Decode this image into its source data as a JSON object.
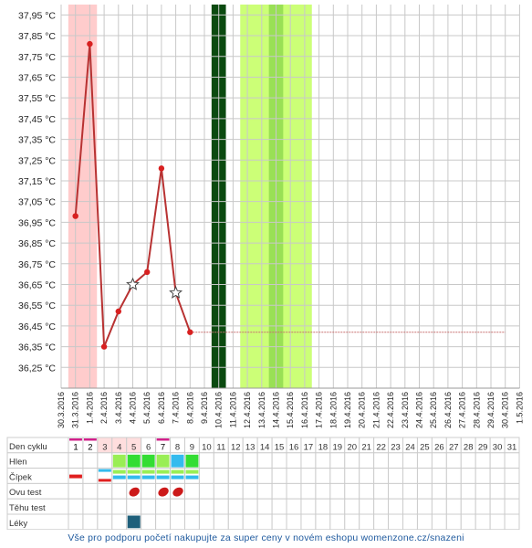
{
  "chart_data": {
    "type": "line",
    "ylim": [
      36.15,
      38.0
    ],
    "y_ticks": [
      36.25,
      36.35,
      36.45,
      36.55,
      36.65,
      36.75,
      36.85,
      36.95,
      37.05,
      37.15,
      37.25,
      37.35,
      37.45,
      37.55,
      37.65,
      37.75,
      37.85,
      37.95
    ],
    "y_tick_labels": [
      "36,25 °C",
      "36,35 °C",
      "36,45 °C",
      "36,55 °C",
      "36,65 °C",
      "36,75 °C",
      "36,85 °C",
      "36,95 °C",
      "37,05 °C",
      "37,15 °C",
      "37,25 °C",
      "37,35 °C",
      "37,45 °C",
      "37,55 °C",
      "37,65 °C",
      "37,75 °C",
      "37,85 °C",
      "37,95 °C"
    ],
    "x_dates": [
      "30.3.2016",
      "31.3.2016",
      "1.4.2016",
      "2.4.2016",
      "3.4.2016",
      "4.4.2016",
      "5.4.2016",
      "6.4.2016",
      "7.4.2016",
      "8.4.2016",
      "9.4.2016",
      "10.4.2016",
      "11.4.2016",
      "12.4.2016",
      "13.4.2016",
      "14.4.2016",
      "15.4.2016",
      "16.4.2016",
      "17.4.2016",
      "18.4.2016",
      "19.4.2016",
      "20.4.2016",
      "21.4.2016",
      "22.4.2016",
      "23.4.2016",
      "24.4.2016",
      "25.4.2016",
      "26.4.2016",
      "27.4.2016",
      "28.4.2016",
      "29.4.2016",
      "30.4.2016",
      "1.5.2016"
    ],
    "temperatures": [
      {
        "date": "31.3.2016",
        "value": 36.98
      },
      {
        "date": "1.4.2016",
        "value": 37.81
      },
      {
        "date": "2.4.2016",
        "value": 36.35
      },
      {
        "date": "3.4.2016",
        "value": 36.52
      },
      {
        "date": "4.4.2016",
        "value": 36.65,
        "marker": "star"
      },
      {
        "date": "5.4.2016",
        "value": 36.71
      },
      {
        "date": "6.4.2016",
        "value": 37.21
      },
      {
        "date": "7.4.2016",
        "value": 36.61,
        "marker": "star"
      },
      {
        "date": "8.4.2016",
        "value": 36.42
      }
    ],
    "baseline": {
      "value": 36.42,
      "from": "8.4.2016",
      "to": "30.4.2016"
    },
    "bands": [
      {
        "from": "31.3.2016",
        "to": "1.4.2016",
        "color": "#ffcccc"
      },
      {
        "from": "10.4.2016",
        "to": "10.4.2016",
        "color": "#0b4a10"
      },
      {
        "from": "12.4.2016",
        "to": "16.4.2016",
        "color": "#ccff77"
      },
      {
        "from": "14.4.2016",
        "to": "14.4.2016",
        "color": "#99e055"
      }
    ],
    "grid": true
  },
  "cycle_table": {
    "rows": [
      "Den cyklu",
      "Hlen",
      "Čípek",
      "Ovu test",
      "Těhu test",
      "Léky"
    ],
    "days": [
      "1",
      "2",
      "3",
      "4",
      "5",
      "6",
      "7",
      "8",
      "9",
      "10",
      "11",
      "12",
      "13",
      "14",
      "15",
      "16",
      "17",
      "18",
      "19",
      "20",
      "21",
      "22",
      "23",
      "24",
      "25",
      "26",
      "27",
      "28",
      "29",
      "30",
      "31"
    ],
    "period_days": [
      1,
      2,
      7
    ],
    "hlen": {
      "4": "#99ee55",
      "5": "#33dd33",
      "6": "#33dd33",
      "7": "#99ee55",
      "8": "#33bbee",
      "9": "#33dd33"
    },
    "cipek_days": [
      1,
      3,
      4,
      5,
      6,
      7,
      8,
      9
    ],
    "ovu_days": [
      5,
      7,
      8
    ],
    "leky_days": [
      5
    ]
  },
  "footer": {
    "text": "Vše pro podporu početí nakupujte za super ceny v novém eshopu womenzone.cz/snazeni"
  },
  "colors": {
    "line": "#b83232",
    "point": "#d82020",
    "baseline": "#c87070",
    "grid": "#c8c8c8",
    "footer": "#1f5a9e"
  }
}
